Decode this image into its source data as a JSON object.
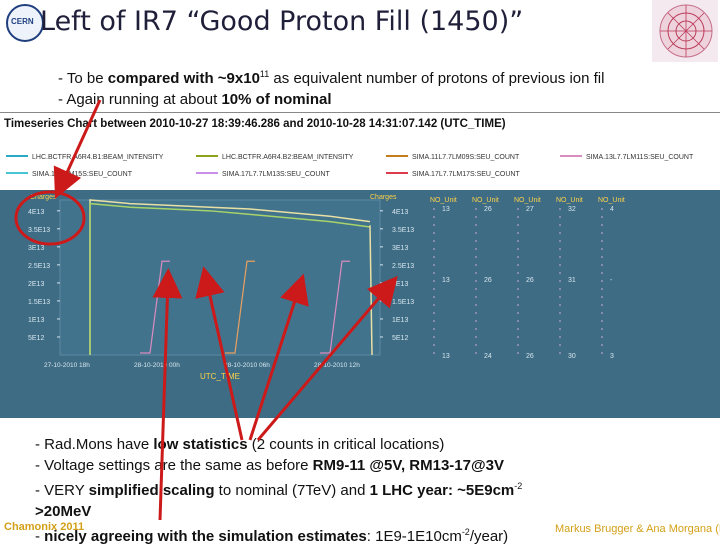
{
  "slide": {
    "title": "Left of IR7 “Good Proton Fill (1450)”",
    "logo_left": "CERN",
    "bullets_top": [
      {
        "prefix": "- To be ",
        "bold": "compared with ~9x10",
        "sup": "11",
        "rest": " as equivalent number of protons of previous ion fil"
      },
      {
        "prefix": "- Again running at about ",
        "bold": "10% of nominal",
        "sup": "",
        "rest": ""
      }
    ],
    "bullets_bottom": [
      {
        "prefix": "- Rad.Mons have ",
        "bold": "low statistics",
        "rest": " (2 counts in critical locations)"
      },
      {
        "prefix": "- Voltage settings are the same as before ",
        "bold": "RM9-11 @5V, RM13-17@3V",
        "rest": ""
      },
      {
        "prefix": "- VERY ",
        "bold": "simplified scaling",
        "rest": " to nominal (7TeV) and ",
        "bold2": "1 LHC year: ~5E9cm",
        "sup": "-2"
      },
      {
        "prefix": "",
        "bold": ">20MeV",
        "rest": ""
      },
      {
        "prefix": "- ",
        "bold": "nicely agreeing with the simulation estimates",
        "rest": ": 1E9-1E10cm",
        "sup": "-2",
        "rest2": "/year)"
      }
    ],
    "footer_left": "Chamonix 2011",
    "footer_right": "Markus Brugger & Ana Morgana (Mirage)"
  },
  "chart": {
    "header": "Timeseries Chart between 2010-10-27 18:39:46.286 and 2010-10-28 14:31:07.142 (UTC_TIME)",
    "legend_row1": [
      "LHC.BCTFR.A6R4.B1:BEAM_INTENSITY",
      "LHC.BCTFR.A6R4.B2:BEAM_INTENSITY",
      "SIMA.11L7.7LM09S:SEU_COUNT",
      "SIMA.13L7.7LM11S:SEU_COUNT"
    ],
    "legend_row2": [
      "SIMA.1.7.7.M15S:SEU_COUNT",
      "SIMA.17L7.7LM13S:SEU_COUNT",
      "SIMA.17L7.7LM17S:SEU_COUNT"
    ],
    "legend_colors": [
      "#2aa9c7",
      "#8aa21c",
      "#c47d1d",
      "#d98cc0",
      "#47c4d6",
      "#c98fe8",
      "#db3b4a"
    ],
    "axis_left_label": "Charges",
    "axis_right_label": "Charges",
    "no_unit_headers": [
      "NO_Unit",
      "NO_Unit",
      "NO_Unit",
      "NO_Unit",
      "NO_Unit"
    ],
    "y_ticks_left": [
      "4E13",
      "3.5E13",
      "3E13",
      "2.5E13",
      "2E13",
      "1.5E13",
      "1E13",
      "5E12"
    ],
    "y_ticks_right": [
      "4E13",
      "3.5E13",
      "3E13",
      "2.5E13",
      "2E13",
      "1.5E13",
      "1E13",
      "5E12"
    ],
    "count_cols": [
      {
        "top": "13",
        "mid": "13",
        "bot": "13"
      },
      {
        "top": "26",
        "mid": "26",
        "bot": "24"
      },
      {
        "top": "27",
        "mid": "26",
        "bot": "26"
      },
      {
        "top": "32",
        "mid": "31",
        "bot": "30"
      },
      {
        "top": "4",
        "mid": "-",
        "bot": "3"
      }
    ],
    "x_ticks": [
      "27-10-2010 18h",
      "28-10-2010 00h",
      "28-10-2010 06h",
      "28-10-2010 12h"
    ],
    "x_label": "UTC_TIME"
  },
  "chart_data": {
    "type": "line",
    "title": "Timeseries Chart between 2010-10-27 18:39:46.286 and 2010-10-28 14:31:07.142 (UTC_TIME)",
    "xlabel": "UTC_TIME",
    "ylabel": "Charges",
    "ylim": [
      0,
      43000000000000
    ],
    "series": [
      {
        "name": "LHC.BCTFR.A6R4.B1:BEAM_INTENSITY",
        "x": [
          "27-10-2010 19h",
          "27-10-2010 20h",
          "27-10-2010 22h",
          "28-10-2010 00h",
          "28-10-2010 03h",
          "28-10-2010 06h",
          "28-10-2010 09h",
          "28-10-2010 11h"
        ],
        "values": [
          43000000000000,
          42000000000000,
          41500000000000,
          41000000000000,
          40500000000000,
          39500000000000,
          38500000000000,
          37000000000000
        ]
      },
      {
        "name": "LHC.BCTFR.A6R4.B2:BEAM_INTENSITY",
        "x": [
          "27-10-2010 19h",
          "27-10-2010 20h",
          "27-10-2010 22h",
          "28-10-2010 00h",
          "28-10-2010 03h",
          "28-10-2010 06h",
          "28-10-2010 09h",
          "28-10-2010 11h"
        ],
        "values": [
          42000000000000,
          41000000000000,
          40500000000000,
          40000000000000,
          39000000000000,
          38000000000000,
          37000000000000,
          35500000000000
        ]
      }
    ]
  }
}
